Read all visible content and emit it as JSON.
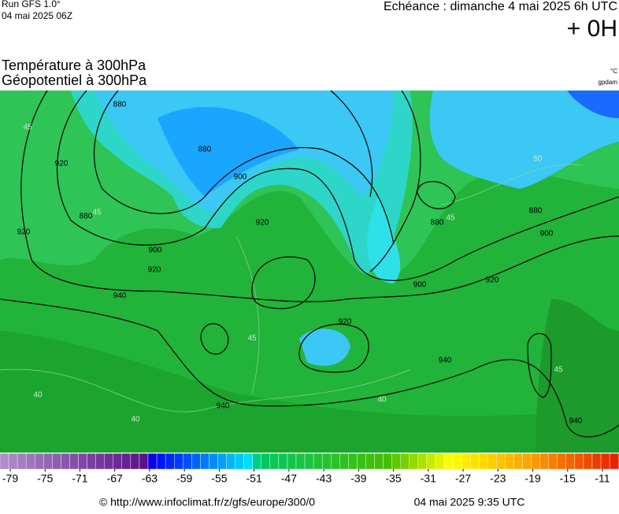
{
  "header": {
    "run": "Run GFS 1.0°",
    "run_date": "04 mai 2025 06Z",
    "forecast": "Echéance : dimanche 4 mai 2025 6h UTC",
    "lead": "+ 0H",
    "title_temperature": "Température à 300hPa",
    "title_geopotential": "Géopotentiel à 300hPa",
    "unit_temperature": "°C",
    "unit_geopotential": "gpdam"
  },
  "map": {
    "contour_labels": [
      "880",
      "920",
      "880",
      "900",
      "920",
      "880",
      "900",
      "920",
      "940",
      "880",
      "880",
      "900",
      "900",
      "920",
      "920",
      "940",
      "940",
      "940",
      "920"
    ],
    "temperature_labels": [
      "45",
      "45",
      "45",
      "40",
      "40",
      "40",
      "45",
      "45",
      "50"
    ]
  },
  "colorbar": {
    "ticks": [
      -79,
      -75,
      -71,
      -67,
      -63,
      -59,
      -55,
      -51,
      -47,
      -43,
      -39,
      -35,
      -31,
      -27,
      -23,
      -19,
      -15,
      -11
    ]
  },
  "footer": {
    "url": "© http://www.infoclimat.fr/z/gfs/europe/300/0",
    "timestamp": "04 mai 2025  9:35 UTC"
  }
}
